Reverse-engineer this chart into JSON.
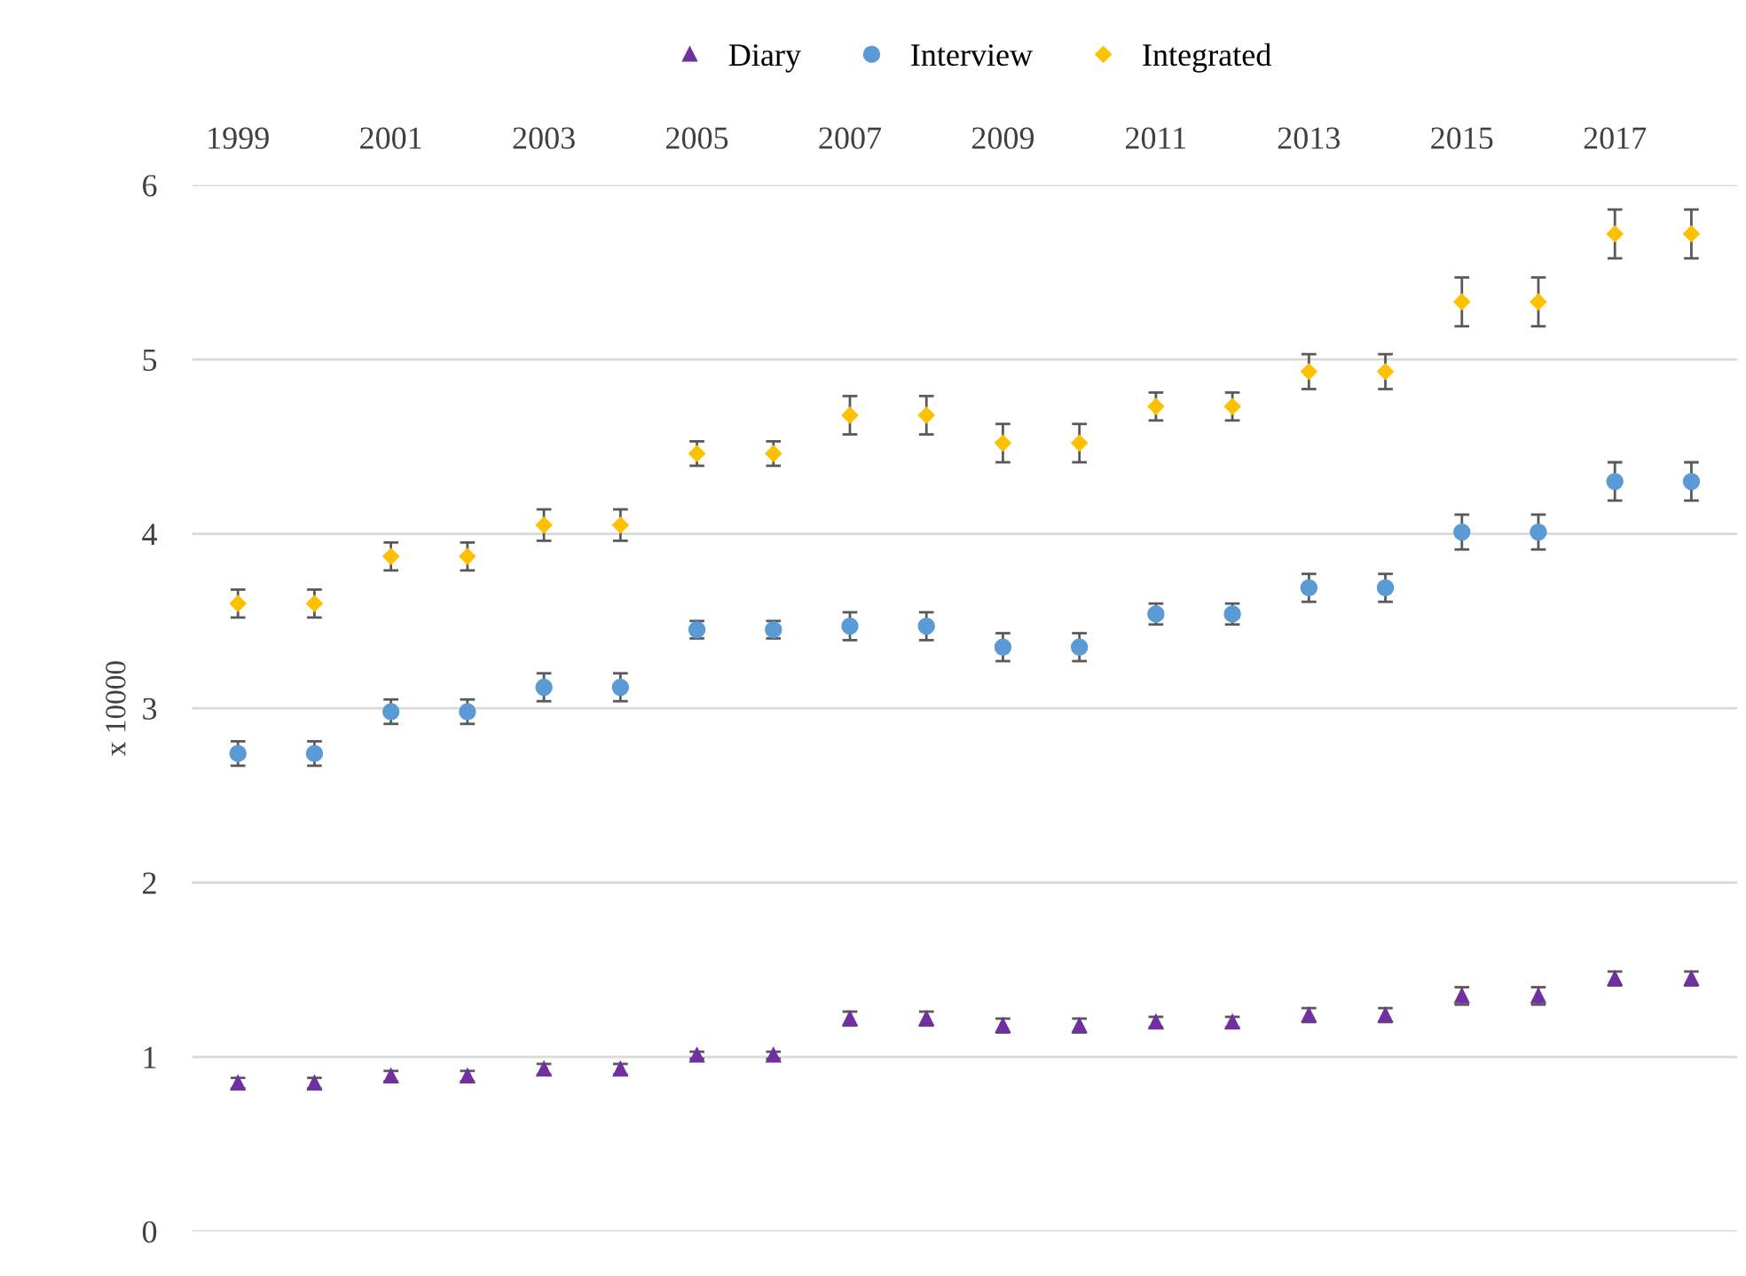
{
  "chart_data": {
    "type": "scatter",
    "ylabel": "x 10000",
    "categories": [
      "1999",
      null,
      "2001",
      null,
      "2003",
      null,
      "2005",
      null,
      "2007",
      null,
      "2009",
      null,
      "2011",
      null,
      "2013",
      null,
      "2015",
      null,
      "2017",
      null
    ],
    "ylim": [
      0,
      6
    ],
    "yticks": [
      0,
      1,
      2,
      3,
      4,
      5,
      6
    ],
    "grid": "y",
    "legend": "top",
    "series": [
      {
        "name": "Diary",
        "color": "#7030a0",
        "marker": "triangle",
        "values": [
          0.85,
          0.85,
          0.89,
          0.89,
          0.93,
          0.93,
          1.01,
          1.01,
          1.22,
          1.22,
          1.18,
          1.18,
          1.2,
          1.2,
          1.24,
          1.24,
          1.35,
          1.35,
          1.45,
          1.45
        ],
        "errors": [
          0.03,
          0.03,
          0.03,
          0.03,
          0.03,
          0.03,
          0.02,
          0.02,
          0.04,
          0.04,
          0.04,
          0.04,
          0.03,
          0.03,
          0.04,
          0.04,
          0.05,
          0.05,
          0.04,
          0.04
        ]
      },
      {
        "name": "Interview",
        "color": "#5b9bd5",
        "marker": "circle",
        "values": [
          2.74,
          2.74,
          2.98,
          2.98,
          3.12,
          3.12,
          3.45,
          3.45,
          3.47,
          3.47,
          3.35,
          3.35,
          3.54,
          3.54,
          3.69,
          3.69,
          4.01,
          4.01,
          4.3,
          4.3
        ],
        "errors": [
          0.07,
          0.07,
          0.07,
          0.07,
          0.08,
          0.08,
          0.05,
          0.05,
          0.08,
          0.08,
          0.08,
          0.08,
          0.06,
          0.06,
          0.08,
          0.08,
          0.1,
          0.1,
          0.11,
          0.11
        ]
      },
      {
        "name": "Integrated",
        "color": "#ffc000",
        "marker": "diamond",
        "values": [
          3.6,
          3.6,
          3.87,
          3.87,
          4.05,
          4.05,
          4.46,
          4.46,
          4.68,
          4.68,
          4.52,
          4.52,
          4.73,
          4.73,
          4.93,
          4.93,
          5.33,
          5.33,
          5.72,
          5.72
        ],
        "errors": [
          0.08,
          0.08,
          0.08,
          0.08,
          0.09,
          0.09,
          0.07,
          0.07,
          0.11,
          0.11,
          0.11,
          0.11,
          0.08,
          0.08,
          0.1,
          0.1,
          0.14,
          0.14,
          0.14,
          0.14
        ]
      }
    ]
  }
}
